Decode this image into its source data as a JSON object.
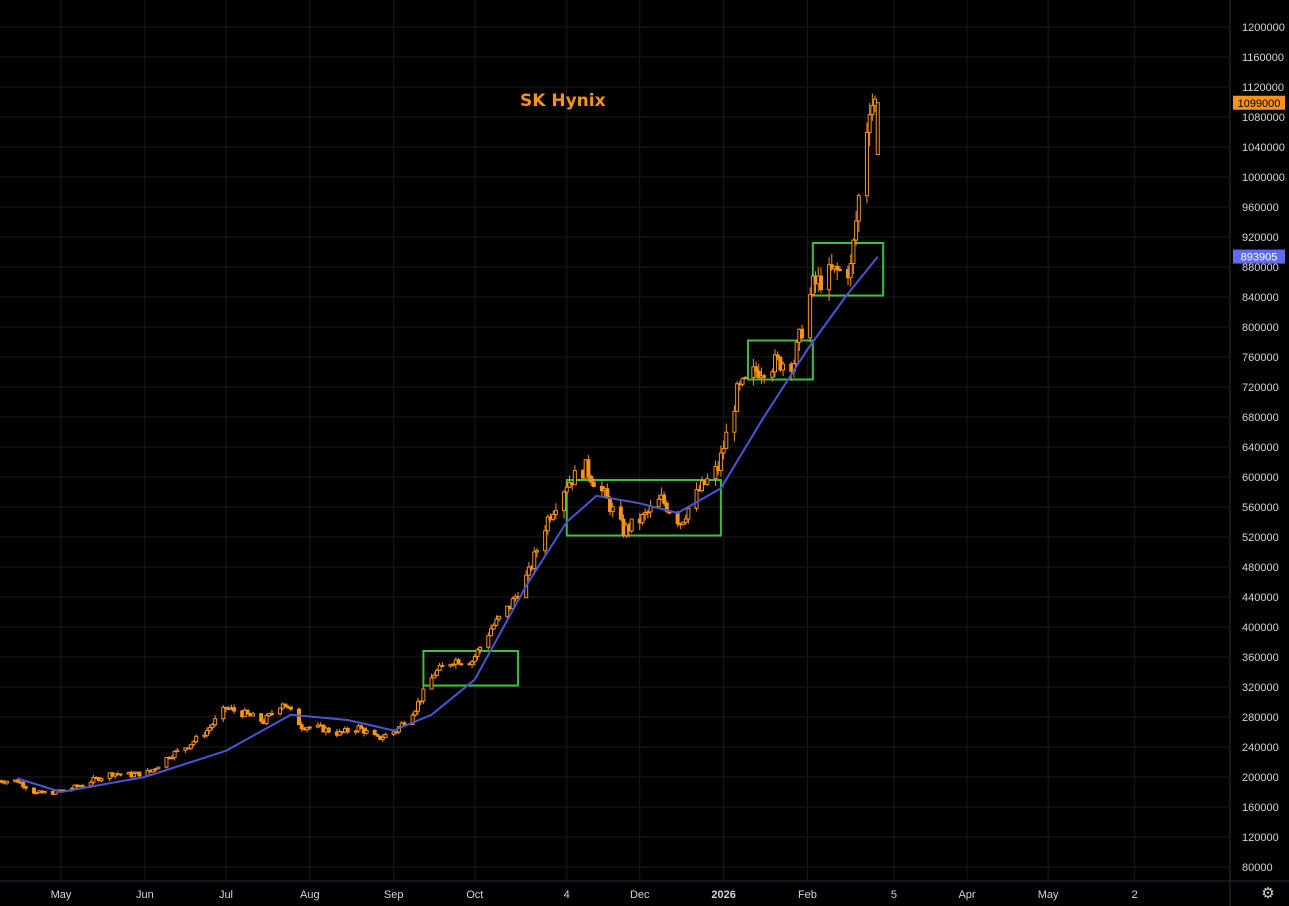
{
  "chart_data": {
    "type": "candlestick",
    "title": "SK Hynix",
    "xlabel": "",
    "ylabel": "",
    "ylim": [
      52000,
      1224000
    ],
    "y_ticks": [
      80000,
      120000,
      160000,
      200000,
      240000,
      280000,
      320000,
      360000,
      400000,
      440000,
      480000,
      520000,
      560000,
      600000,
      640000,
      680000,
      720000,
      760000,
      800000,
      840000,
      880000,
      920000,
      960000,
      1000000,
      1040000,
      1080000,
      1120000,
      1160000,
      1200000
    ],
    "x_ticks": [
      {
        "label": "May",
        "date": "2025-05-01",
        "bold": false
      },
      {
        "label": "Jun",
        "date": "2025-06-01",
        "bold": false
      },
      {
        "label": "Jul",
        "date": "2025-07-01",
        "bold": false
      },
      {
        "label": "Aug",
        "date": "2025-08-01",
        "bold": false
      },
      {
        "label": "Sep",
        "date": "2025-09-01",
        "bold": false
      },
      {
        "label": "Oct",
        "date": "2025-10-01",
        "bold": false
      },
      {
        "label": "4",
        "date": "2025-11-04",
        "bold": false
      },
      {
        "label": "Dec",
        "date": "2025-12-01",
        "bold": false
      },
      {
        "label": "2026",
        "date": "2026-01-01",
        "bold": true
      },
      {
        "label": "Feb",
        "date": "2026-02-01",
        "bold": false
      },
      {
        "label": "5",
        "date": "2026-03-05",
        "bold": false
      },
      {
        "label": "Apr",
        "date": "2026-04-01",
        "bold": false
      },
      {
        "label": "May",
        "date": "2026-05-01",
        "bold": false
      },
      {
        "label": "2",
        "date": "2026-06-02",
        "bold": false
      }
    ],
    "grid": true,
    "colors": {
      "candle": "#f7931a",
      "ma_line": "#4a55d4",
      "box": "#3cc03c",
      "price_badge": "#f7931a",
      "ma_badge": "#5b6cf0",
      "axis_text": "#d1d4dc",
      "grid": "#1a1a1a"
    },
    "price_closes": [
      [
        "2025-04-15",
        195000
      ],
      [
        "2025-04-22",
        178000
      ],
      [
        "2025-04-29",
        180000
      ],
      [
        "2025-05-06",
        186000
      ],
      [
        "2025-05-13",
        196000
      ],
      [
        "2025-05-20",
        205000
      ],
      [
        "2025-05-27",
        203000
      ],
      [
        "2025-06-03",
        207000
      ],
      [
        "2025-06-10",
        228000
      ],
      [
        "2025-06-17",
        242000
      ],
      [
        "2025-06-24",
        262000
      ],
      [
        "2025-07-01",
        292000
      ],
      [
        "2025-07-08",
        284000
      ],
      [
        "2025-07-15",
        274000
      ],
      [
        "2025-07-22",
        300000
      ],
      [
        "2025-07-29",
        268000
      ],
      [
        "2025-08-05",
        265000
      ],
      [
        "2025-08-12",
        258000
      ],
      [
        "2025-08-19",
        266000
      ],
      [
        "2025-08-26",
        251000
      ],
      [
        "2025-09-02",
        262000
      ],
      [
        "2025-09-09",
        292000
      ],
      [
        "2025-09-16",
        338000
      ],
      [
        "2025-09-23",
        356000
      ],
      [
        "2025-09-30",
        355000
      ],
      [
        "2025-10-07",
        398000
      ],
      [
        "2025-10-14",
        428000
      ],
      [
        "2025-10-21",
        472000
      ],
      [
        "2025-10-28",
        545000
      ],
      [
        "2025-11-04",
        592000
      ],
      [
        "2025-11-11",
        612000
      ],
      [
        "2025-11-18",
        575000
      ],
      [
        "2025-11-25",
        528000
      ],
      [
        "2025-12-02",
        545000
      ],
      [
        "2025-12-09",
        570000
      ],
      [
        "2025-12-16",
        540000
      ],
      [
        "2025-12-23",
        582000
      ],
      [
        "2025-12-30",
        612000
      ],
      [
        "2026-01-06",
        712000
      ],
      [
        "2026-01-13",
        742000
      ],
      [
        "2026-01-20",
        752000
      ],
      [
        "2026-01-27",
        755000
      ],
      [
        "2026-02-03",
        855000
      ],
      [
        "2026-02-10",
        872000
      ],
      [
        "2026-02-17",
        878000
      ],
      [
        "2026-02-24",
        1099000
      ]
    ],
    "moving_average": [
      [
        "2025-04-15",
        198000
      ],
      [
        "2025-05-01",
        180000
      ],
      [
        "2025-06-01",
        200000
      ],
      [
        "2025-07-01",
        235000
      ],
      [
        "2025-07-25",
        283000
      ],
      [
        "2025-08-15",
        276000
      ],
      [
        "2025-09-01",
        262000
      ],
      [
        "2025-09-15",
        283000
      ],
      [
        "2025-10-01",
        330000
      ],
      [
        "2025-10-20",
        455000
      ],
      [
        "2025-11-04",
        540000
      ],
      [
        "2025-11-15",
        575000
      ],
      [
        "2025-12-01",
        565000
      ],
      [
        "2025-12-15",
        552000
      ],
      [
        "2025-12-31",
        585000
      ],
      [
        "2026-01-15",
        675000
      ],
      [
        "2026-02-01",
        770000
      ],
      [
        "2026-02-15",
        840000
      ],
      [
        "2026-02-27",
        893905
      ]
    ],
    "boxes": [
      {
        "start": "2025-09-12",
        "end": "2025-10-17",
        "low": 322000,
        "high": 368000
      },
      {
        "start": "2025-11-04",
        "end": "2025-12-31",
        "low": 522000,
        "high": 596000
      },
      {
        "start": "2026-01-10",
        "end": "2026-02-03",
        "low": 730000,
        "high": 782000
      },
      {
        "start": "2026-02-03",
        "end": "2026-03-01",
        "low": 842000,
        "high": 912000
      }
    ],
    "last_price": 1099000,
    "ma_last": 893905,
    "last_price_label": "1099000",
    "ma_last_label": "893905"
  },
  "ui": {
    "settings_icon": "gear-icon"
  }
}
